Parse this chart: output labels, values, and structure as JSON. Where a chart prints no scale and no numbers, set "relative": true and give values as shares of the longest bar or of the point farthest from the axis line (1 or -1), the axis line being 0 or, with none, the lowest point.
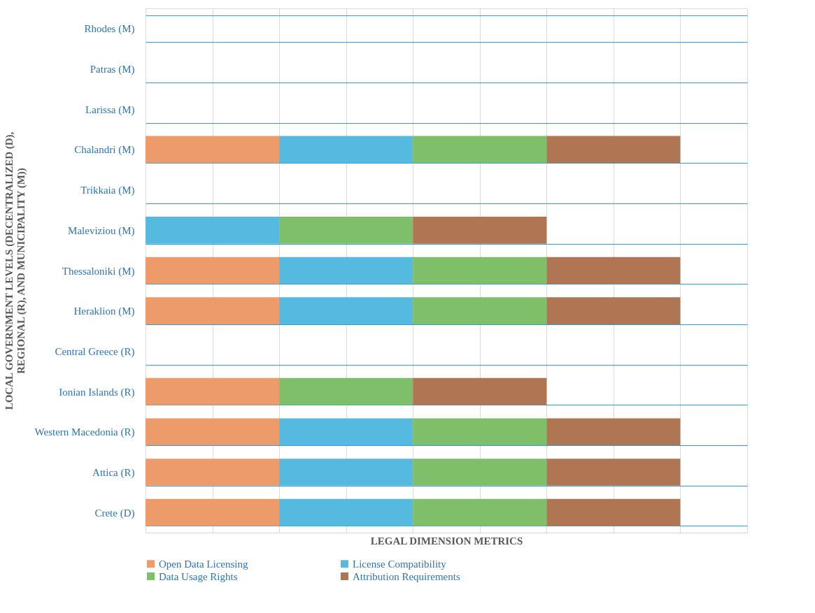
{
  "chart_data": {
    "type": "bar",
    "orientation": "horizontal",
    "stacked": true,
    "relative": true,
    "xlabel": "LEGAL DIMENSION METRICS",
    "ylabel": "LOCAL GOVERNMENT LEVELS (DECENTRALIZED (D), REGIONAL (R), AND MUNICIPALITY (M))",
    "categories": [
      "Rhodes (M)",
      "Patras (M)",
      "Larissa (M)",
      "Chalandri (M)",
      "Trikkaia (M)",
      "Maleviziou (M)",
      "Thessaloniki (M)",
      "Heraklion (M)",
      "Central Greece (R)",
      "Ionian Islands (R)",
      "Western Macedonia (R)",
      "Attica (R)",
      "Crete (D)"
    ],
    "series": [
      {
        "name": "Open Data Licensing",
        "color": "#ee9b6c",
        "values": [
          null,
          null,
          null,
          0.25,
          null,
          null,
          0.25,
          0.25,
          null,
          0.25,
          0.25,
          0.25,
          0.25
        ]
      },
      {
        "name": "License Compatibility",
        "color": "#56b9e0",
        "values": [
          null,
          null,
          null,
          0.25,
          null,
          0.25,
          0.25,
          0.25,
          null,
          null,
          0.25,
          0.25,
          0.25
        ]
      },
      {
        "name": "Data Usage Rights",
        "color": "#80bf69",
        "values": [
          null,
          null,
          null,
          0.25,
          null,
          0.25,
          0.25,
          0.25,
          null,
          0.25,
          0.25,
          0.25,
          0.25
        ]
      },
      {
        "name": "Attribution Requirements",
        "color": "#b07653",
        "values": [
          null,
          null,
          null,
          0.25,
          null,
          0.25,
          0.25,
          0.25,
          null,
          0.25,
          0.25,
          0.25,
          0.25
        ]
      }
    ],
    "grid": true,
    "legend": "bottom"
  }
}
